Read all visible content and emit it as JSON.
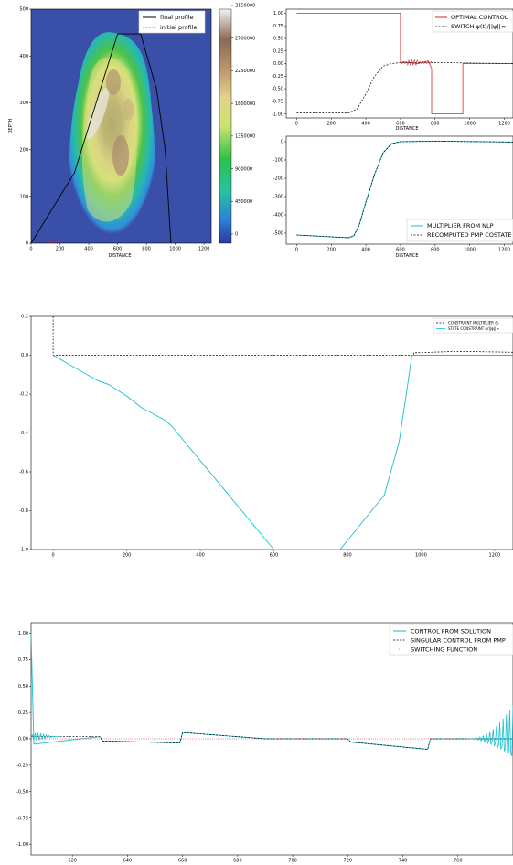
{
  "chart_data": [
    {
      "id": "contour",
      "type": "heatmap",
      "xlabel": "DISTANCE",
      "ylabel": "DEPTH",
      "xlim": [
        0,
        1250
      ],
      "ylim": [
        0,
        500
      ],
      "x_ticks": [
        0,
        200,
        400,
        600,
        800,
        1000,
        1200
      ],
      "y_ticks": [
        0,
        100,
        200,
        300,
        400,
        500
      ],
      "legend": {
        "position": "top-right",
        "entries": [
          "final profile",
          "initial profile"
        ]
      },
      "colorbar_ticks": [
        0,
        450000,
        900000,
        1350000,
        1800000,
        2250000,
        2700000,
        3150000
      ],
      "colors": {
        "background": "#3a50a8",
        "final": "#000000",
        "initial": "#d62728"
      },
      "series": [
        {
          "name": "final profile",
          "x": [
            0,
            300,
            600,
            760,
            870,
            930,
            970
          ],
          "y": [
            0,
            150,
            447,
            447,
            330,
            200,
            0
          ]
        },
        {
          "name": "initial profile",
          "x": [
            120,
            160,
            200
          ],
          "y": [
            0,
            8,
            0
          ]
        }
      ]
    },
    {
      "id": "control",
      "type": "line",
      "xlabel": "DISTANCE",
      "xlim": [
        -60,
        1250
      ],
      "ylim": [
        -1.08,
        1.08
      ],
      "x_ticks": [
        0,
        200,
        400,
        600,
        800,
        1000,
        1200
      ],
      "y_ticks": [
        "1.00",
        "0.75",
        "0.50",
        "0.25",
        "0.00",
        "-0.25",
        "-0.50",
        "-0.75",
        "-1.00"
      ],
      "legend": {
        "position": "top-right",
        "entries": [
          "OPTIMAL CONTROL",
          "SWITCH ψ(t)/||ψ||∞"
        ]
      },
      "series": [
        {
          "name": "OPTIMAL CONTROL",
          "x": [
            0,
            600,
            600,
            620,
            700,
            760,
            780,
            780,
            960,
            960,
            1250
          ],
          "y": [
            1,
            1,
            0.02,
            0.03,
            0.0,
            0.05,
            -0.1,
            -1.0,
            -1.0,
            0.0,
            0.0
          ]
        },
        {
          "name": "SWITCH ψ(t)/||ψ||∞",
          "x": [
            0,
            300,
            350,
            400,
            450,
            500,
            550,
            600,
            800,
            1250
          ],
          "y": [
            -0.98,
            -0.98,
            -0.9,
            -0.6,
            -0.25,
            -0.05,
            0.0,
            0.02,
            0.02,
            0.0
          ]
        }
      ]
    },
    {
      "id": "multiplier",
      "type": "line",
      "xlabel": "DISTANCE",
      "xlim": [
        -60,
        1250
      ],
      "ylim": [
        -560,
        30
      ],
      "x_ticks": [
        0,
        200,
        400,
        600,
        800,
        1000,
        1200
      ],
      "y_ticks": [
        0,
        -100,
        -200,
        -300,
        -400,
        -500
      ],
      "legend": {
        "position": "bottom-right",
        "entries": [
          "MULTIPLIER FROM NLP",
          "RECOMPUTED PMP COSTATE"
        ]
      },
      "series": [
        {
          "name": "MULTIPLIER FROM NLP",
          "x": [
            0,
            300,
            330,
            360,
            400,
            450,
            500,
            550,
            600,
            800,
            1250
          ],
          "y": [
            -510,
            -525,
            -515,
            -460,
            -330,
            -180,
            -60,
            -10,
            0,
            3,
            -2
          ]
        },
        {
          "name": "RECOMPUTED PMP COSTATE",
          "x": [
            0,
            300,
            330,
            360,
            400,
            450,
            500,
            550,
            600,
            800,
            1250
          ],
          "y": [
            -510,
            -525,
            -515,
            -460,
            -330,
            -180,
            -60,
            -10,
            0,
            3,
            -2
          ]
        }
      ]
    },
    {
      "id": "constraint",
      "type": "line",
      "xlim": [
        -60,
        1250
      ],
      "ylim": [
        -1.0,
        0.2
      ],
      "x_ticks": [
        0,
        200,
        400,
        600,
        800,
        1000,
        1200
      ],
      "y_ticks": [
        "0.2",
        "0.0",
        "-0.2",
        "-0.4",
        "-0.6",
        "-0.8",
        "-1.0"
      ],
      "legend": {
        "position": "top-right",
        "entries": [
          "CONSTRAINT MULTIPLIER ϑ₀",
          "STATE CONSTRAINT φ/||φ||∞"
        ]
      },
      "series": [
        {
          "name": "CONSTRAINT MULTIPLIER ϑ₀",
          "x": [
            0,
            0,
            980,
            980,
            1100,
            1250
          ],
          "y": [
            0.2,
            0.0,
            0.0,
            0.012,
            0.02,
            0.015
          ]
        },
        {
          "name": "STATE CONSTRAINT φ/||φ||∞",
          "x": [
            0,
            120,
            150,
            200,
            240,
            300,
            320,
            600,
            780,
            900,
            940,
            960,
            975,
            1250
          ],
          "y": [
            0,
            -0.13,
            -0.15,
            -0.21,
            -0.27,
            -0.33,
            -0.36,
            -1.0,
            -1.0,
            -0.72,
            -0.45,
            -0.2,
            0.0,
            0.0
          ]
        }
      ]
    },
    {
      "id": "singular",
      "type": "line",
      "xlim": [
        605,
        780
      ],
      "ylim": [
        -1.1,
        1.1
      ],
      "x_ticks": [
        620,
        640,
        660,
        680,
        700,
        720,
        740,
        760
      ],
      "y_ticks": [
        "1.00",
        "0.75",
        "0.50",
        "0.25",
        "0.00",
        "-0.25",
        "-0.50",
        "-0.75",
        "-1.00"
      ],
      "legend": {
        "position": "top-right",
        "entries": [
          "CONTROL FROM SOLUTION",
          "SINGULAR CONTROL FROM PMP",
          "SWITCHING FUNCTION"
        ]
      },
      "series": [
        {
          "name": "CONTROL FROM SOLUTION",
          "x": [
            605,
            606,
            630,
            631,
            659,
            660,
            690,
            720,
            721,
            749,
            750,
            765,
            780
          ],
          "y": [
            1.0,
            -0.05,
            0.02,
            -0.02,
            -0.04,
            0.06,
            0.0,
            0.0,
            -0.03,
            -0.1,
            0.0,
            0.0,
            0.0
          ]
        },
        {
          "name": "SINGULAR CONTROL FROM PMP",
          "x": [
            605,
            630,
            631,
            659,
            660,
            690,
            720,
            721,
            749,
            750,
            780
          ],
          "y": [
            0.02,
            0.02,
            -0.02,
            -0.04,
            0.06,
            0.0,
            0.0,
            -0.03,
            -0.1,
            0.0,
            0.0
          ]
        },
        {
          "name": "SWITCHING FUNCTION",
          "x": [
            605,
            780
          ],
          "y": [
            0,
            0
          ]
        }
      ]
    }
  ]
}
